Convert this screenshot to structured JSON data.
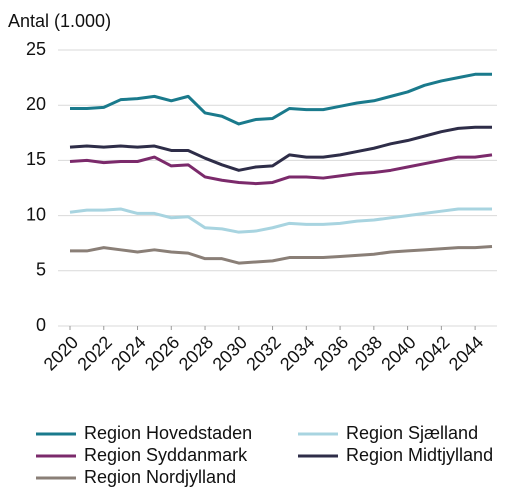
{
  "chart_data": {
    "type": "line",
    "y_label": "Antal (1.000)",
    "x": [
      2020,
      2021,
      2022,
      2023,
      2024,
      2025,
      2026,
      2027,
      2028,
      2029,
      2030,
      2031,
      2032,
      2033,
      2034,
      2035,
      2036,
      2037,
      2038,
      2039,
      2040,
      2041,
      2042,
      2043,
      2044,
      2045
    ],
    "xlim": [
      2020,
      2045
    ],
    "xticks": [
      2020,
      2022,
      2024,
      2026,
      2028,
      2030,
      2032,
      2034,
      2036,
      2038,
      2040,
      2042,
      2044
    ],
    "ylim": [
      0,
      25
    ],
    "yticks": [
      0,
      5,
      10,
      15,
      20,
      25
    ],
    "grid": true,
    "series": [
      {
        "name": "Region Hovedstaden",
        "color": "#1a7a8c",
        "values": [
          19.7,
          19.7,
          19.8,
          20.5,
          20.6,
          20.8,
          20.4,
          20.8,
          19.3,
          19.0,
          18.3,
          18.7,
          18.8,
          19.7,
          19.6,
          19.6,
          19.9,
          20.2,
          20.4,
          20.8,
          21.2,
          21.8,
          22.2,
          22.5,
          22.8,
          22.8
        ]
      },
      {
        "name": "Region Sjælland",
        "color": "#a8d4e0",
        "values": [
          10.3,
          10.5,
          10.5,
          10.6,
          10.2,
          10.2,
          9.8,
          9.9,
          8.9,
          8.8,
          8.5,
          8.6,
          8.9,
          9.3,
          9.2,
          9.2,
          9.3,
          9.5,
          9.6,
          9.8,
          10.0,
          10.2,
          10.4,
          10.6,
          10.6,
          10.6
        ]
      },
      {
        "name": "Region Syddanmark",
        "color": "#7b2a6b",
        "values": [
          14.9,
          15.0,
          14.8,
          14.9,
          14.9,
          15.3,
          14.5,
          14.6,
          13.5,
          13.2,
          13.0,
          12.9,
          13.0,
          13.5,
          13.5,
          13.4,
          13.6,
          13.8,
          13.9,
          14.1,
          14.4,
          14.7,
          15.0,
          15.3,
          15.3,
          15.5
        ]
      },
      {
        "name": "Region Midtjylland",
        "color": "#2e2d48",
        "values": [
          16.2,
          16.3,
          16.2,
          16.3,
          16.2,
          16.3,
          15.9,
          15.9,
          15.2,
          14.6,
          14.1,
          14.4,
          14.5,
          15.5,
          15.3,
          15.3,
          15.5,
          15.8,
          16.1,
          16.5,
          16.8,
          17.2,
          17.6,
          17.9,
          18.0,
          18.0
        ]
      },
      {
        "name": "Region Nordjylland",
        "color": "#8a7f77",
        "values": [
          6.8,
          6.8,
          7.1,
          6.9,
          6.7,
          6.9,
          6.7,
          6.6,
          6.1,
          6.1,
          5.7,
          5.8,
          5.9,
          6.2,
          6.2,
          6.2,
          6.3,
          6.4,
          6.5,
          6.7,
          6.8,
          6.9,
          7.0,
          7.1,
          7.1,
          7.2
        ]
      }
    ]
  }
}
